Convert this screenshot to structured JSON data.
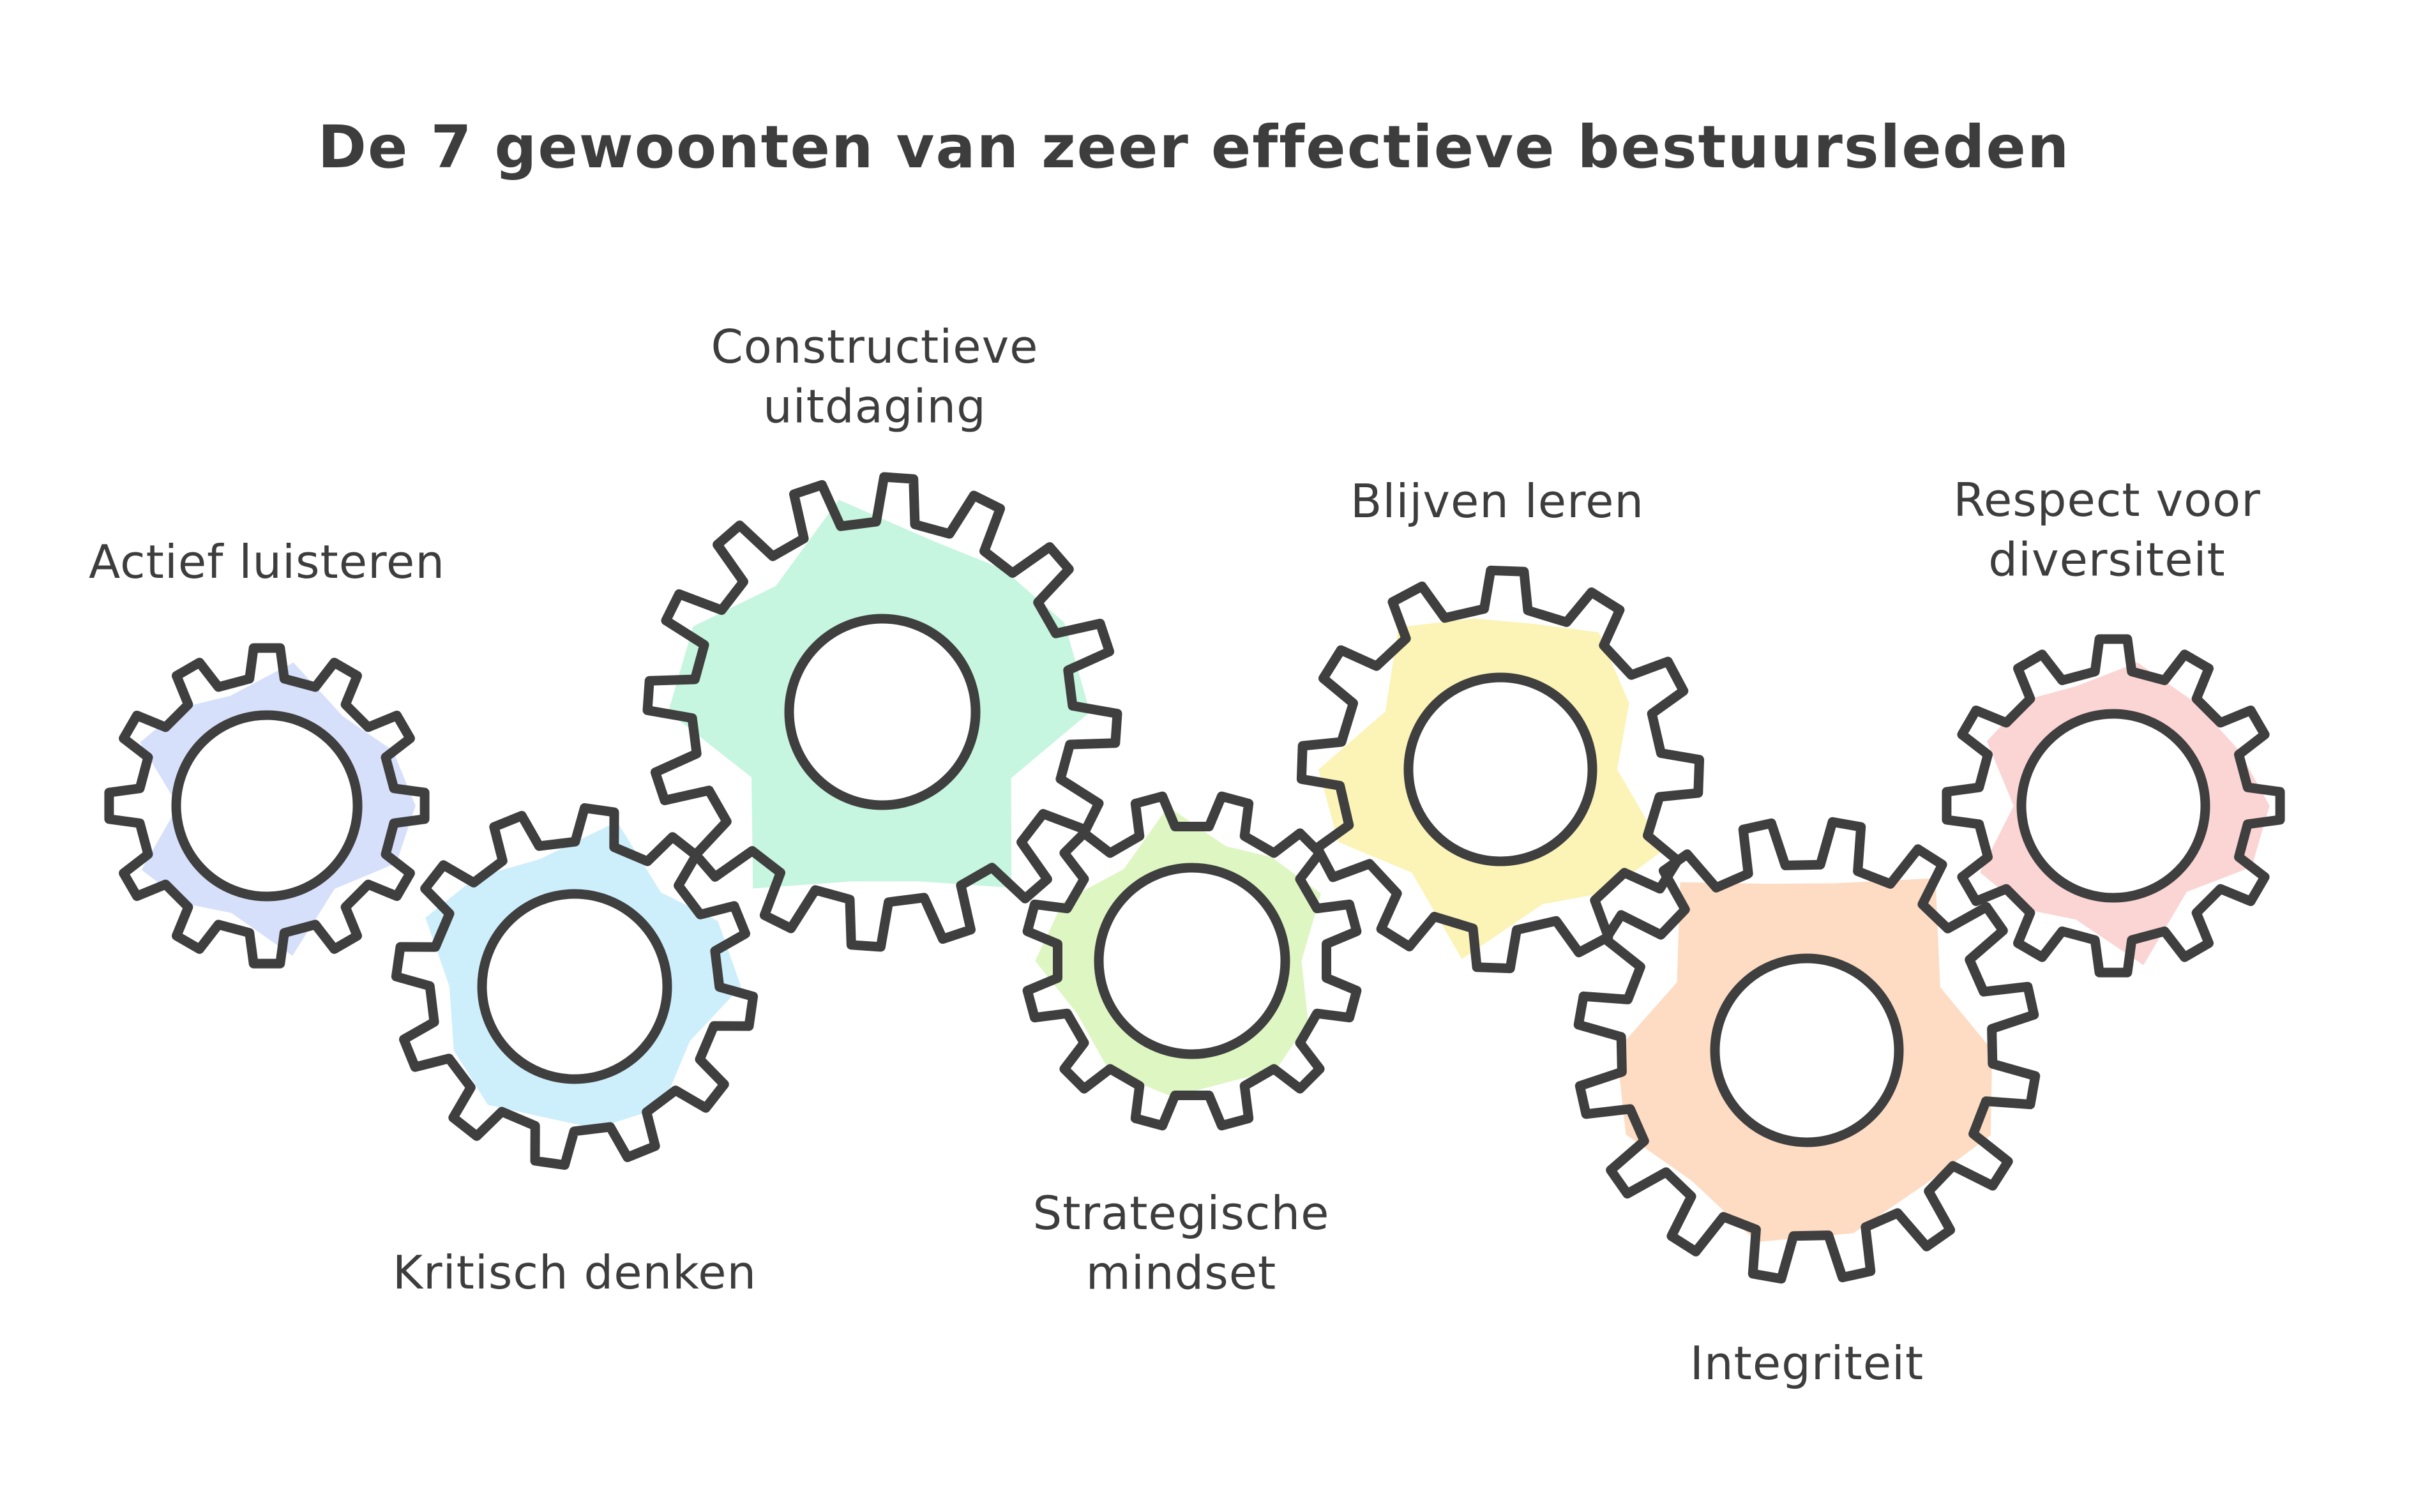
{
  "title": "De 7 gewoonten van zeer effectieve bestuursleden",
  "gears": [
    {
      "id": "actief-luisteren",
      "label_lines": [
        "Actief luisteren"
      ],
      "color": "#d6e0fb",
      "icon": "gear-icon"
    },
    {
      "id": "kritisch-denken",
      "label_lines": [
        "Kritisch denken"
      ],
      "color": "#cdeefb",
      "icon": "gear-icon"
    },
    {
      "id": "constructieve-uitdaging",
      "label_lines": [
        "Constructieve",
        "uitdaging"
      ],
      "color": "#c6f5e0",
      "icon": "gear-icon"
    },
    {
      "id": "strategische-mindset",
      "label_lines": [
        "Strategische",
        "mindset"
      ],
      "color": "#ddf6c2",
      "icon": "gear-icon"
    },
    {
      "id": "blijven-leren",
      "label_lines": [
        "Blijven leren"
      ],
      "color": "#fcf3b6",
      "icon": "gear-icon"
    },
    {
      "id": "integriteit",
      "label_lines": [
        "Integriteit"
      ],
      "color": "#fddcc3",
      "icon": "gear-icon"
    },
    {
      "id": "respect-voor-diversiteit",
      "label_lines": [
        "Respect voor",
        "diversiteit"
      ],
      "color": "#fbd4d4",
      "icon": "gear-icon"
    }
  ]
}
